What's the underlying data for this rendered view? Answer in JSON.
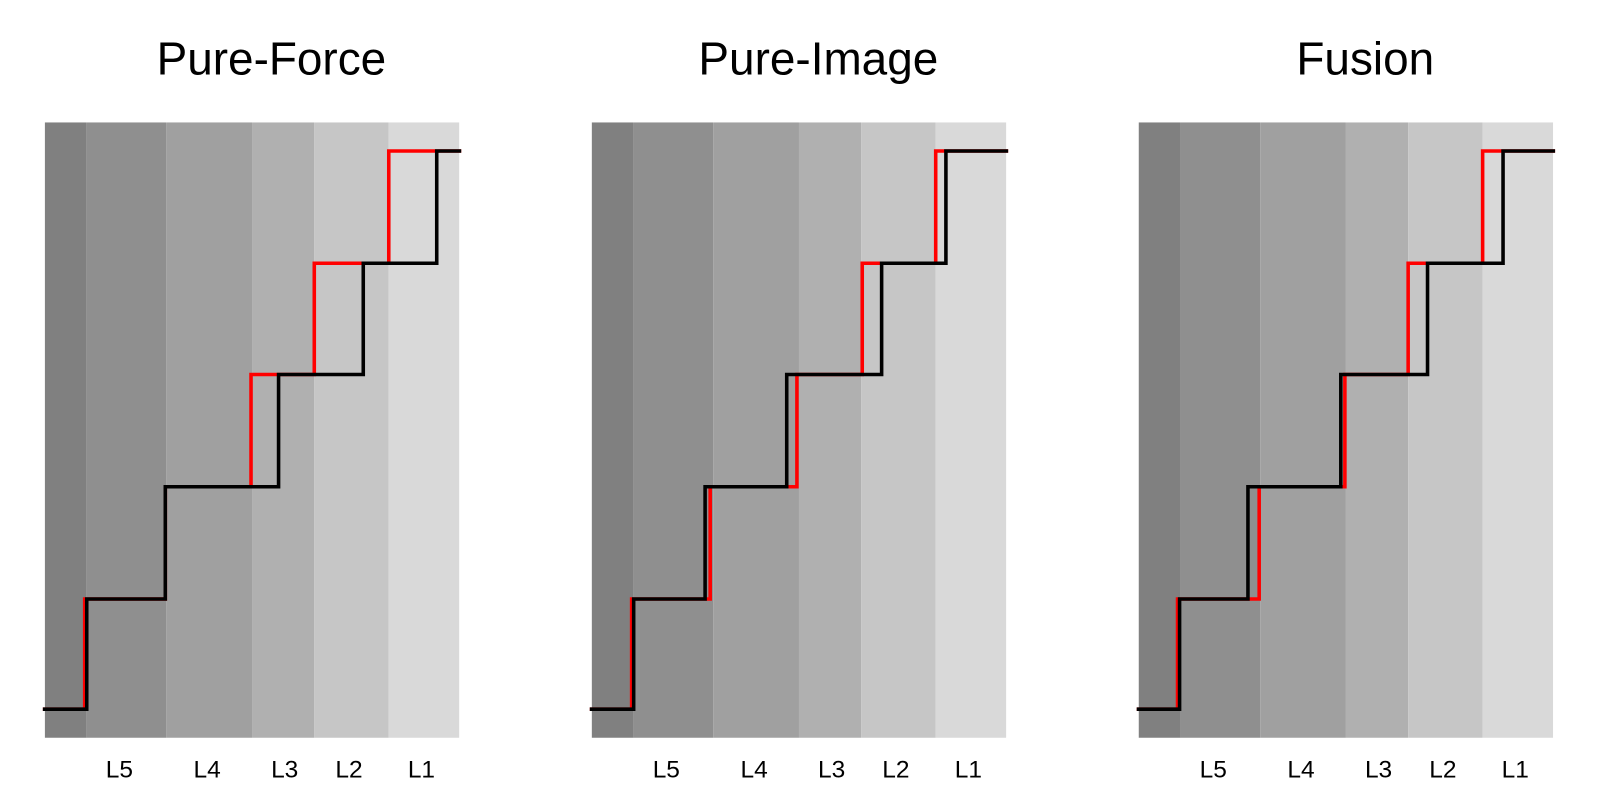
{
  "panels": [
    {
      "title": "Pure-Force",
      "labels": [
        "L5",
        "L4",
        "L3",
        "L2",
        "L1"
      ]
    },
    {
      "title": "Pure-Image",
      "labels": [
        "L5",
        "L4",
        "L3",
        "L2",
        "L1"
      ]
    },
    {
      "title": "Fusion",
      "labels": [
        "L5",
        "L4",
        "L3",
        "L2",
        "L1"
      ]
    }
  ]
}
